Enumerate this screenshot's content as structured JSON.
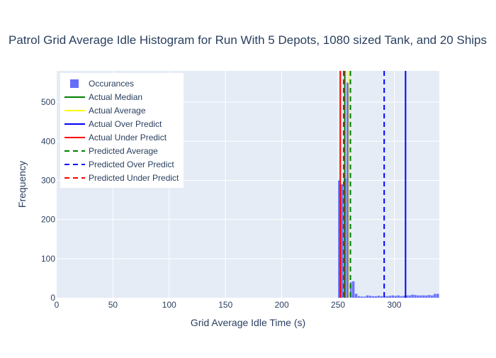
{
  "chart_data": {
    "type": "bar",
    "title": "Patrol Grid Average Idle Histogram for Run With 5 Depots, 1080 sized Tank, and 20 Ships",
    "xlabel": "Grid Average Idle Time (s)",
    "ylabel": "Frequency",
    "xlim": [
      0,
      340
    ],
    "ylim": [
      0,
      580
    ],
    "xticks": [
      0,
      50,
      100,
      150,
      200,
      250,
      300
    ],
    "yticks": [
      0,
      100,
      200,
      300,
      400,
      500
    ],
    "grid": true,
    "legend_position": "top-left",
    "histogram": {
      "name": "Occurances",
      "color": "#636efa",
      "bin_width": 2.5,
      "bins": [
        {
          "x0": 250,
          "count": 300
        },
        {
          "x0": 252.5,
          "count": 290
        },
        {
          "x0": 255,
          "count": 305
        },
        {
          "x0": 257.5,
          "count": 550
        },
        {
          "x0": 260,
          "count": 40
        },
        {
          "x0": 262.5,
          "count": 42
        },
        {
          "x0": 265,
          "count": 10
        },
        {
          "x0": 267.5,
          "count": 4
        },
        {
          "x0": 270,
          "count": 3
        },
        {
          "x0": 272.5,
          "count": 3
        },
        {
          "x0": 275,
          "count": 6
        },
        {
          "x0": 277.5,
          "count": 5
        },
        {
          "x0": 280,
          "count": 4
        },
        {
          "x0": 282.5,
          "count": 4
        },
        {
          "x0": 285,
          "count": 5
        },
        {
          "x0": 287.5,
          "count": 4
        },
        {
          "x0": 290,
          "count": 4
        },
        {
          "x0": 292.5,
          "count": 4
        },
        {
          "x0": 295,
          "count": 5
        },
        {
          "x0": 297.5,
          "count": 6
        },
        {
          "x0": 300,
          "count": 5
        },
        {
          "x0": 302.5,
          "count": 6
        },
        {
          "x0": 305,
          "count": 4
        },
        {
          "x0": 307.5,
          "count": 5
        },
        {
          "x0": 310,
          "count": 6
        },
        {
          "x0": 312.5,
          "count": 6
        },
        {
          "x0": 315,
          "count": 8
        },
        {
          "x0": 317.5,
          "count": 7
        },
        {
          "x0": 320,
          "count": 6
        },
        {
          "x0": 322.5,
          "count": 6
        },
        {
          "x0": 325,
          "count": 6
        },
        {
          "x0": 327.5,
          "count": 6
        },
        {
          "x0": 330,
          "count": 7
        },
        {
          "x0": 332.5,
          "count": 6
        },
        {
          "x0": 335,
          "count": 10
        },
        {
          "x0": 337.5,
          "count": 10
        }
      ]
    },
    "vlines": [
      {
        "name": "Actual Median",
        "x": 256,
        "color": "#008000",
        "dash": false
      },
      {
        "name": "Actual Average",
        "x": 260,
        "color": "#ffff00",
        "dash": false
      },
      {
        "name": "Actual Over Predict",
        "x": 310,
        "color": "#0000ff",
        "dash": false
      },
      {
        "name": "Actual Under Predict",
        "x": 252,
        "color": "#ff0000",
        "dash": false
      },
      {
        "name": "Predicted Average",
        "x": 261,
        "color": "#008000",
        "dash": true
      },
      {
        "name": "Predicted Over Predict",
        "x": 291,
        "color": "#0000ff",
        "dash": true
      },
      {
        "name": "Predicted Under Predict",
        "x": 255,
        "color": "#ff0000",
        "dash": true
      }
    ]
  }
}
